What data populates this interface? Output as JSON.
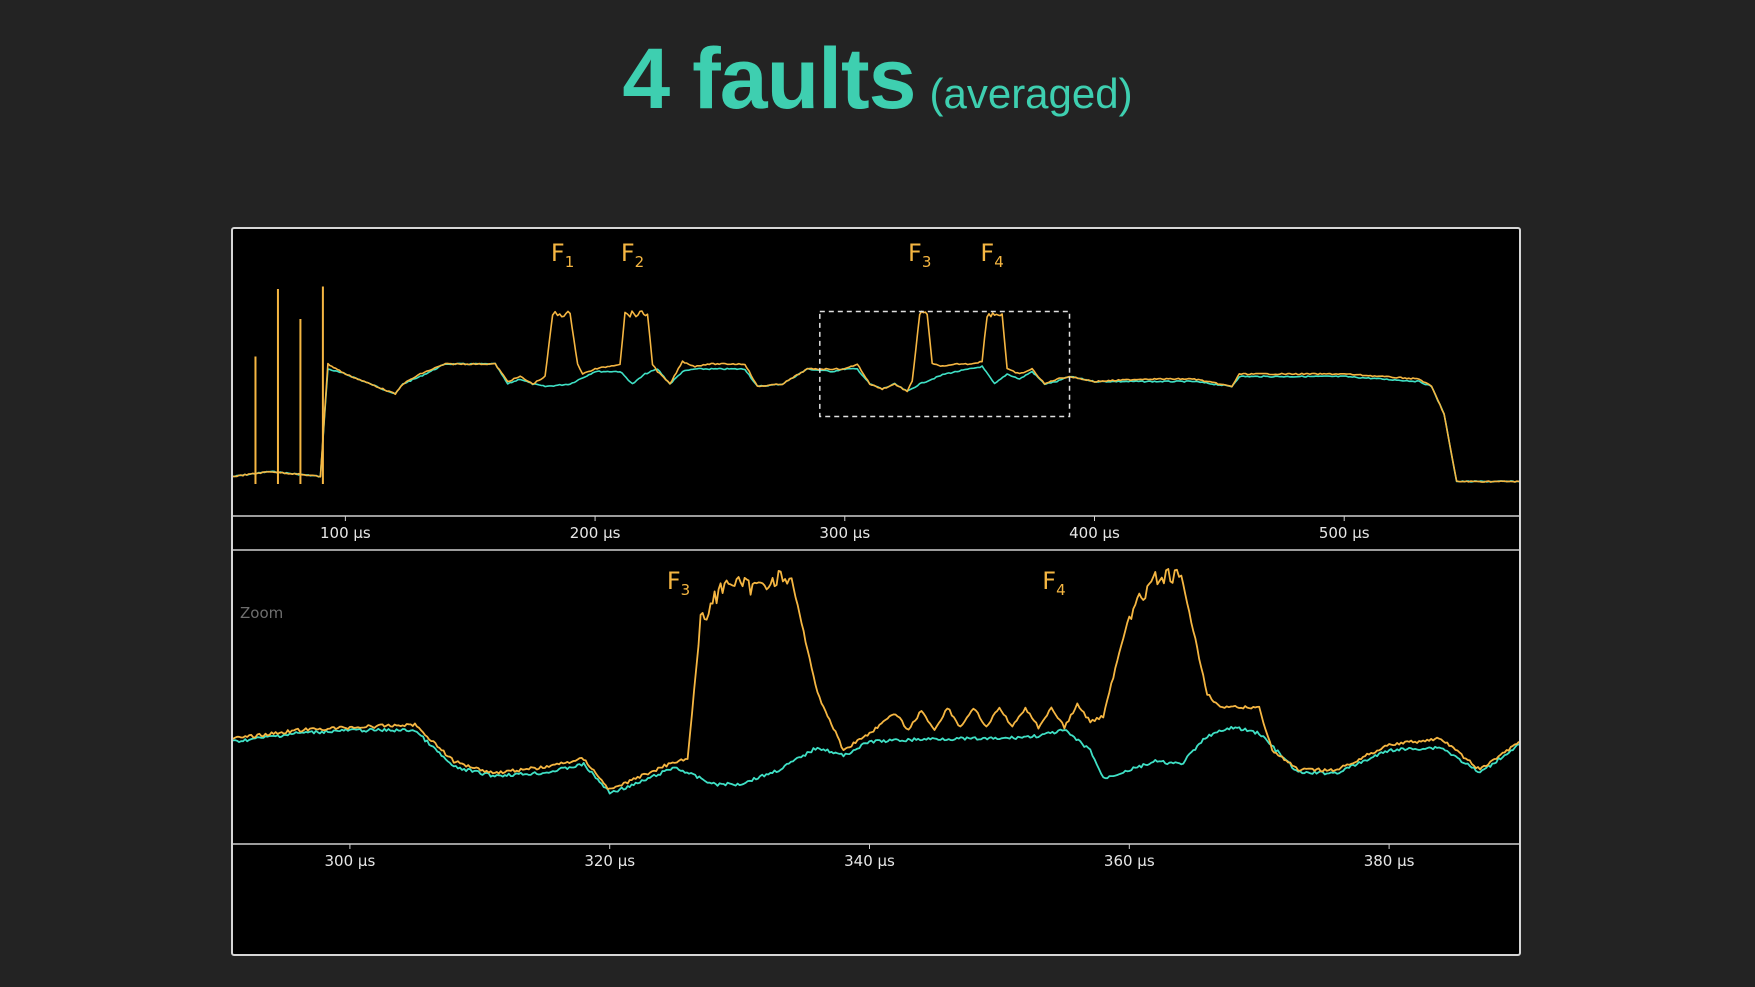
{
  "title": {
    "main": "4 faults",
    "sub": "(averaged)"
  },
  "colors": {
    "faulted": "#f5b642",
    "reference": "#3fe0c5",
    "title": "#3ecfb0",
    "background": "#232323",
    "panel": "#000000"
  },
  "chart_data": [
    {
      "type": "line",
      "panel": "overview",
      "x_unit": "µs",
      "xlim": [
        55,
        570
      ],
      "ylim": [
        0,
        1
      ],
      "x_ticks": [
        100,
        200,
        300,
        400,
        500
      ],
      "x_tick_labels": [
        "100 µs",
        "200 µs",
        "300 µs",
        "400 µs",
        "500 µs"
      ],
      "series": [
        {
          "color": "#3fe0c5",
          "x": [
            55,
            70,
            90,
            93,
            100,
            110,
            120,
            123,
            130,
            140,
            160,
            165,
            170,
            175,
            180,
            190,
            200,
            210,
            215,
            220,
            225,
            230,
            235,
            240,
            245,
            260,
            265,
            275,
            285,
            295,
            300,
            305,
            310,
            315,
            320,
            325,
            330,
            335,
            340,
            345,
            350,
            355,
            360,
            365,
            370,
            375,
            380,
            385,
            390,
            400,
            420,
            440,
            455,
            458,
            500,
            530,
            535,
            540,
            545,
            570
          ],
          "y": [
            0.15,
            0.17,
            0.15,
            0.58,
            0.56,
            0.52,
            0.48,
            0.52,
            0.55,
            0.6,
            0.6,
            0.52,
            0.54,
            0.52,
            0.51,
            0.52,
            0.57,
            0.57,
            0.52,
            0.56,
            0.58,
            0.52,
            0.57,
            0.58,
            0.58,
            0.58,
            0.51,
            0.52,
            0.58,
            0.57,
            0.58,
            0.58,
            0.52,
            0.5,
            0.52,
            0.49,
            0.52,
            0.54,
            0.56,
            0.57,
            0.58,
            0.59,
            0.52,
            0.56,
            0.54,
            0.57,
            0.52,
            0.53,
            0.55,
            0.53,
            0.53,
            0.53,
            0.51,
            0.55,
            0.55,
            0.53,
            0.51,
            0.4,
            0.13,
            0.13
          ]
        },
        {
          "color": "#f5b642",
          "x": [
            55,
            70,
            90,
            93,
            100,
            110,
            120,
            123,
            130,
            140,
            160,
            165,
            170,
            175,
            180,
            183,
            185,
            190,
            193,
            195,
            200,
            210,
            212,
            214,
            218,
            221,
            223,
            225,
            230,
            235,
            240,
            245,
            260,
            265,
            275,
            285,
            295,
            300,
            305,
            310,
            315,
            320,
            325,
            327,
            330,
            333,
            335,
            340,
            345,
            350,
            355,
            357,
            360,
            363,
            365,
            370,
            375,
            380,
            385,
            390,
            400,
            420,
            440,
            455,
            458,
            500,
            530,
            535,
            540,
            545,
            570
          ],
          "y": [
            0.15,
            0.17,
            0.15,
            0.6,
            0.56,
            0.52,
            0.48,
            0.52,
            0.56,
            0.6,
            0.6,
            0.53,
            0.55,
            0.52,
            0.55,
            0.8,
            0.8,
            0.8,
            0.6,
            0.56,
            0.58,
            0.6,
            0.8,
            0.8,
            0.8,
            0.8,
            0.6,
            0.57,
            0.52,
            0.61,
            0.59,
            0.6,
            0.6,
            0.51,
            0.52,
            0.58,
            0.58,
            0.58,
            0.6,
            0.52,
            0.5,
            0.52,
            0.49,
            0.53,
            0.8,
            0.8,
            0.6,
            0.59,
            0.6,
            0.6,
            0.61,
            0.8,
            0.8,
            0.8,
            0.58,
            0.56,
            0.58,
            0.52,
            0.54,
            0.55,
            0.53,
            0.54,
            0.54,
            0.51,
            0.56,
            0.56,
            0.54,
            0.51,
            0.4,
            0.13,
            0.13
          ]
        }
      ],
      "spikes_x": [
        64,
        73,
        82,
        91
      ],
      "annotations": [
        {
          "label": "F",
          "sub": "1",
          "x": 187
        },
        {
          "label": "F",
          "sub": "2",
          "x": 215
        },
        {
          "label": "F",
          "sub": "3",
          "x": 330
        },
        {
          "label": "F",
          "sub": "4",
          "x": 359
        }
      ],
      "zoom_box": {
        "x": [
          290,
          390
        ],
        "y": [
          0.39,
          0.81
        ]
      }
    },
    {
      "type": "line",
      "panel": "zoom",
      "label": "Zoom",
      "x_unit": "µs",
      "xlim": [
        291,
        390
      ],
      "ylim": [
        0,
        1
      ],
      "x_ticks": [
        300,
        320,
        340,
        360,
        380
      ],
      "x_tick_labels": [
        "300 µs",
        "320 µs",
        "340 µs",
        "360 µs",
        "380 µs"
      ],
      "series": [
        {
          "color": "#3fe0c5",
          "x": [
            291,
            296,
            300,
            305,
            308,
            311,
            315,
            318,
            320,
            322,
            325,
            328,
            330,
            333,
            336,
            338,
            340,
            345,
            350,
            353,
            355,
            357,
            358,
            362,
            364,
            366,
            368,
            370,
            373,
            376,
            380,
            384,
            387,
            390
          ],
          "y": [
            0.35,
            0.38,
            0.39,
            0.39,
            0.26,
            0.23,
            0.24,
            0.27,
            0.17,
            0.2,
            0.26,
            0.2,
            0.2,
            0.25,
            0.33,
            0.3,
            0.35,
            0.36,
            0.36,
            0.37,
            0.39,
            0.32,
            0.22,
            0.28,
            0.27,
            0.37,
            0.4,
            0.38,
            0.24,
            0.24,
            0.32,
            0.33,
            0.24,
            0.34
          ]
        },
        {
          "color": "#f5b642",
          "x": [
            291,
            296,
            300,
            305,
            308,
            311,
            315,
            318,
            320,
            322,
            325,
            326,
            327,
            329,
            331,
            333,
            334,
            336,
            338,
            340,
            342,
            343,
            344,
            345,
            346,
            347,
            348,
            349,
            350,
            351,
            352,
            353,
            354,
            355,
            356,
            357,
            358,
            360,
            362,
            363,
            364,
            366,
            367,
            368,
            370,
            371,
            373,
            376,
            380,
            384,
            387,
            390
          ],
          "y": [
            0.36,
            0.39,
            0.4,
            0.41,
            0.28,
            0.24,
            0.26,
            0.29,
            0.18,
            0.22,
            0.28,
            0.29,
            0.77,
            0.92,
            0.89,
            0.93,
            0.92,
            0.52,
            0.32,
            0.38,
            0.45,
            0.39,
            0.46,
            0.39,
            0.47,
            0.4,
            0.47,
            0.4,
            0.47,
            0.4,
            0.47,
            0.4,
            0.47,
            0.4,
            0.48,
            0.42,
            0.44,
            0.8,
            0.92,
            0.93,
            0.93,
            0.52,
            0.47,
            0.47,
            0.47,
            0.32,
            0.25,
            0.25,
            0.34,
            0.36,
            0.25,
            0.35
          ]
        }
      ],
      "annotations": [
        {
          "label": "F",
          "sub": "3",
          "x": 325.3
        },
        {
          "label": "F",
          "sub": "4",
          "x": 354.2
        }
      ]
    }
  ]
}
